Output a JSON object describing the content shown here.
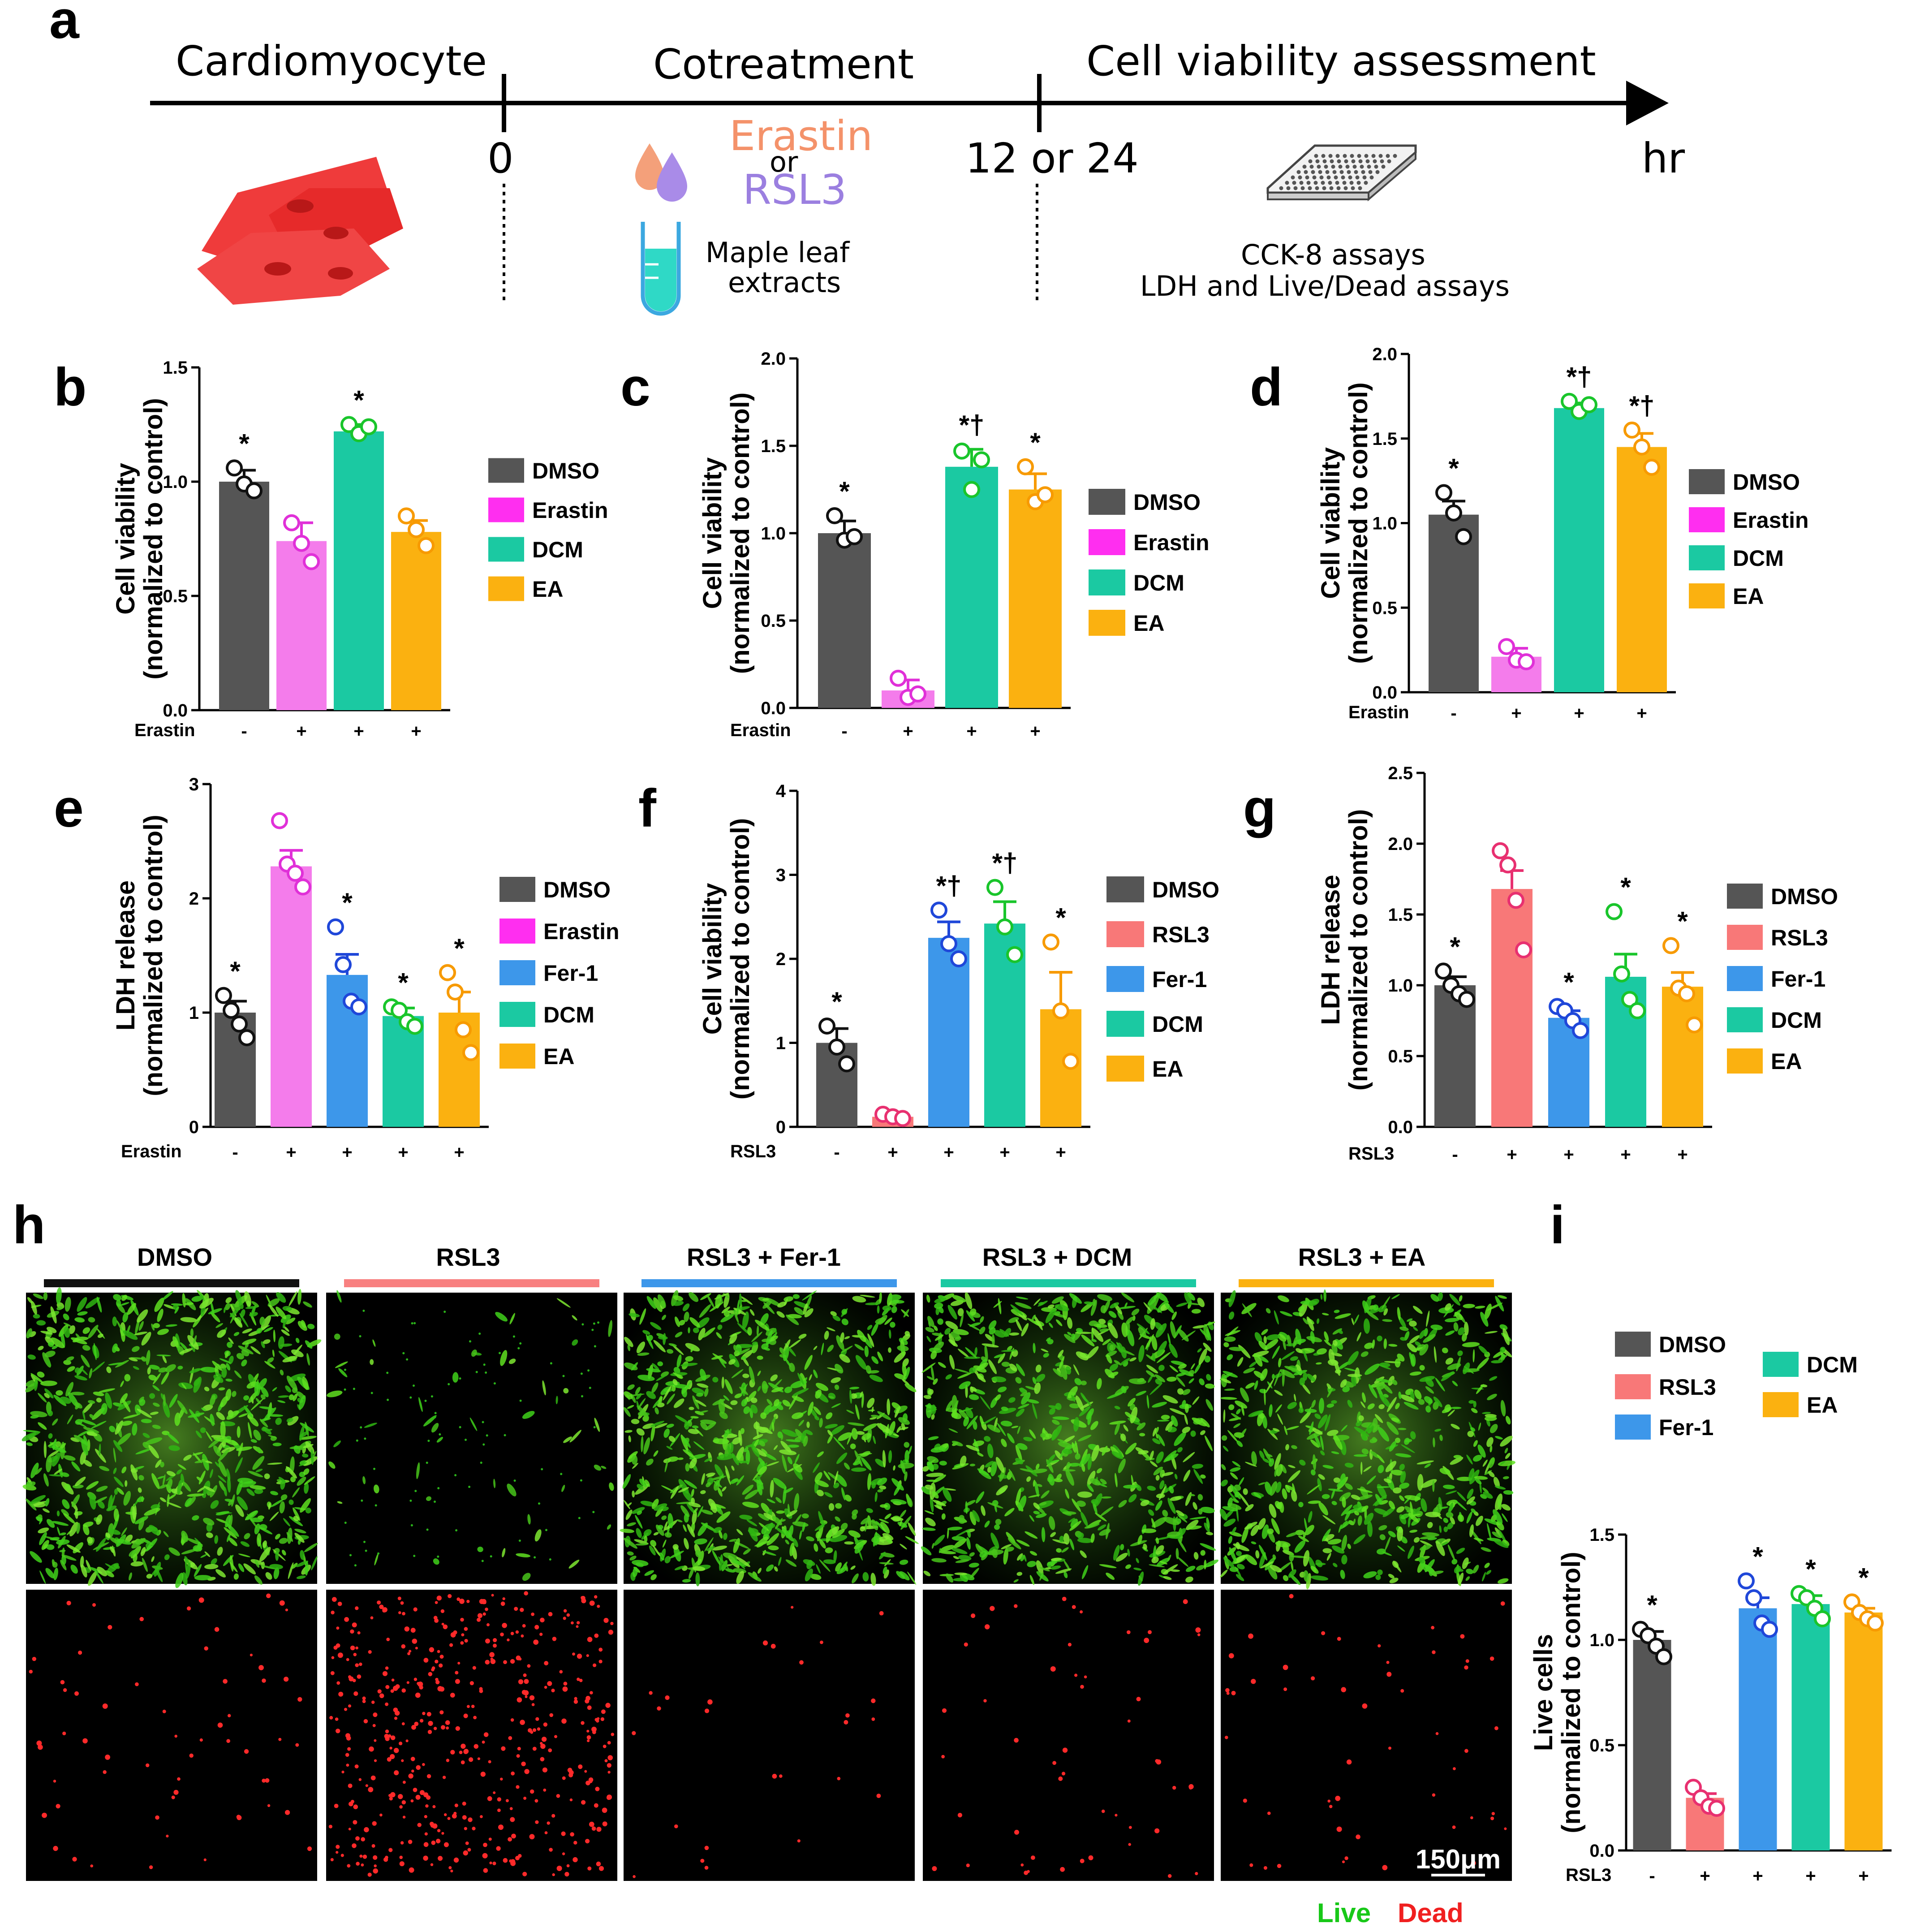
{
  "panel_labels": [
    "a",
    "b",
    "c",
    "d",
    "e",
    "f",
    "g",
    "h",
    "i"
  ],
  "timeline": {
    "stage_labels": [
      "Cardiomyocyte",
      "Cotreatment",
      "Cell viability assessment"
    ],
    "time_labels": [
      "0",
      "12 or 24",
      "hr"
    ],
    "treatment_erastin": "Erastin",
    "treatment_or": "or",
    "treatment_rsl3": "RSL3",
    "extract_label_1": "Maple leaf",
    "extract_label_2": "extracts",
    "assay_label_1": "CCK-8 assays",
    "assay_label_2": "LDH and Live/Dead assays",
    "colors": {
      "erastin": "#F4926A",
      "rsl3": "#9B7FE0",
      "cell": "#EF3B3B",
      "tube": "#2FD9C6"
    }
  },
  "colors": {
    "DMSO": "#555555",
    "Erastin_b": "#F47CEB",
    "Erastin_legend": "#FF2EF0",
    "RSL3": "#F87878",
    "Fer-1": "#3D97EA",
    "DCM": "#1BC9A2",
    "EA": "#FBB110",
    "dot_DMSO": "#111111",
    "dot_Erastin": "#E030D8",
    "dot_RSL3": "#E83070",
    "dot_Fer-1": "#1F47D9",
    "dot_DCM": "#19C52B",
    "dot_EA": "#F79A00"
  },
  "chart_data": [
    {
      "panel": "b",
      "type": "bar",
      "ylabel": "Cell viability (normalized to control)",
      "ylim": [
        0,
        1.5
      ],
      "yticks": [
        0.0,
        0.5,
        1.0,
        1.5
      ],
      "tick_decimals": 1,
      "treatment_label": "Erastin",
      "treatment_signs": [
        "-",
        "+",
        "+",
        "+"
      ],
      "groups": [
        "DMSO",
        "Erastin",
        "DCM",
        "EA"
      ],
      "values": [
        1.0,
        0.74,
        1.22,
        0.78
      ],
      "sem": [
        0.05,
        0.08,
        0.03,
        0.05
      ],
      "points": [
        [
          1.06,
          0.99,
          0.96
        ],
        [
          0.82,
          0.73,
          0.65
        ],
        [
          1.25,
          1.21,
          1.24
        ],
        [
          0.85,
          0.79,
          0.72
        ]
      ],
      "sig": [
        "*",
        "",
        "*",
        ""
      ],
      "legend": [
        "DMSO",
        "Erastin",
        "DCM",
        "EA"
      ]
    },
    {
      "panel": "c",
      "type": "bar",
      "ylabel": "Cell viability (normalized to control)",
      "ylim": [
        0,
        2.0
      ],
      "yticks": [
        0.0,
        0.5,
        1.0,
        1.5,
        2.0
      ],
      "tick_decimals": 1,
      "treatment_label": "Erastin",
      "treatment_signs": [
        "-",
        "+",
        "+",
        "+"
      ],
      "groups": [
        "DMSO",
        "Erastin",
        "DCM",
        "EA"
      ],
      "values": [
        1.0,
        0.1,
        1.38,
        1.25
      ],
      "sem": [
        0.07,
        0.06,
        0.1,
        0.09
      ],
      "points": [
        [
          1.1,
          0.96,
          0.98
        ],
        [
          0.17,
          0.06,
          0.08
        ],
        [
          1.47,
          1.25,
          1.42
        ],
        [
          1.38,
          1.18,
          1.22
        ]
      ],
      "sig": [
        "*",
        "",
        "*†",
        "*"
      ],
      "legend": [
        "DMSO",
        "Erastin",
        "DCM",
        "EA"
      ]
    },
    {
      "panel": "d",
      "type": "bar",
      "ylabel": "Cell viability (normalized to control)",
      "ylim": [
        0,
        2.0
      ],
      "yticks": [
        0.0,
        0.5,
        1.0,
        1.5,
        2.0
      ],
      "tick_decimals": 1,
      "treatment_label": "Erastin",
      "treatment_signs": [
        "-",
        "+",
        "+",
        "+"
      ],
      "groups": [
        "DMSO",
        "Erastin",
        "DCM",
        "EA"
      ],
      "values": [
        1.05,
        0.21,
        1.68,
        1.45
      ],
      "sem": [
        0.08,
        0.05,
        0.03,
        0.08
      ],
      "points": [
        [
          1.18,
          1.06,
          0.92
        ],
        [
          0.27,
          0.19,
          0.18
        ],
        [
          1.72,
          1.66,
          1.7
        ],
        [
          1.55,
          1.45,
          1.33
        ]
      ],
      "sig": [
        "*",
        "",
        "*†",
        "*†"
      ],
      "legend": [
        "DMSO",
        "Erastin",
        "DCM",
        "EA"
      ]
    },
    {
      "panel": "e",
      "type": "bar",
      "ylabel": "LDH release (normalized to control)",
      "ylim": [
        0,
        3
      ],
      "yticks": [
        0,
        1,
        2,
        3
      ],
      "tick_decimals": 0,
      "treatment_label": "Erastin",
      "treatment_signs": [
        "-",
        "+",
        "+",
        "+",
        "+"
      ],
      "groups": [
        "DMSO",
        "Erastin",
        "Fer-1",
        "DCM",
        "EA"
      ],
      "values": [
        1.0,
        2.28,
        1.33,
        0.97,
        1.0
      ],
      "sem": [
        0.1,
        0.14,
        0.18,
        0.07,
        0.18
      ],
      "points": [
        [
          1.15,
          1.02,
          0.9,
          0.78
        ],
        [
          2.68,
          2.3,
          2.22,
          2.1
        ],
        [
          1.75,
          1.42,
          1.1,
          1.05
        ],
        [
          1.05,
          1.02,
          0.92,
          0.88
        ],
        [
          1.35,
          1.18,
          0.85,
          0.65
        ]
      ],
      "sig": [
        "*",
        "",
        "*",
        "*",
        "*"
      ],
      "legend": [
        "DMSO",
        "Erastin",
        "Fer-1",
        "DCM",
        "EA"
      ]
    },
    {
      "panel": "f",
      "type": "bar",
      "ylabel": "Cell viability (normalized to control)",
      "ylim": [
        0,
        4
      ],
      "yticks": [
        0,
        1,
        2,
        3,
        4
      ],
      "tick_decimals": 0,
      "treatment_label": "RSL3",
      "treatment_signs": [
        "-",
        "+",
        "+",
        "+",
        "+"
      ],
      "groups": [
        "DMSO",
        "RSL3",
        "Fer-1",
        "DCM",
        "EA"
      ],
      "values": [
        1.0,
        0.12,
        2.25,
        2.42,
        1.4
      ],
      "sem": [
        0.17,
        0.03,
        0.19,
        0.26,
        0.44
      ],
      "points": [
        [
          1.2,
          0.95,
          0.75
        ],
        [
          0.15,
          0.12,
          0.1
        ],
        [
          2.58,
          2.18,
          2.0
        ],
        [
          2.85,
          2.38,
          2.05
        ],
        [
          2.2,
          1.38,
          0.78
        ]
      ],
      "sig": [
        "*",
        "",
        "*†",
        "*†",
        "*"
      ],
      "legend": [
        "DMSO",
        "RSL3",
        "Fer-1",
        "DCM",
        "EA"
      ]
    },
    {
      "panel": "g",
      "type": "bar",
      "ylabel": "LDH release (normalized to control)",
      "ylim": [
        0,
        2.5
      ],
      "yticks": [
        0.0,
        0.5,
        1.0,
        1.5,
        2.0,
        2.5
      ],
      "tick_decimals": 1,
      "treatment_label": "RSL3",
      "treatment_signs": [
        "-",
        "+",
        "+",
        "+",
        "+"
      ],
      "groups": [
        "DMSO",
        "RSL3",
        "Fer-1",
        "DCM",
        "EA"
      ],
      "values": [
        1.0,
        1.68,
        0.77,
        1.06,
        0.99
      ],
      "sem": [
        0.06,
        0.13,
        0.05,
        0.16,
        0.1
      ],
      "points": [
        [
          1.1,
          1.0,
          0.94,
          0.9
        ],
        [
          1.95,
          1.85,
          1.6,
          1.25
        ],
        [
          0.85,
          0.82,
          0.75,
          0.68
        ],
        [
          1.52,
          1.08,
          0.9,
          0.82
        ],
        [
          1.28,
          0.98,
          0.94,
          0.72
        ]
      ],
      "sig": [
        "*",
        "",
        "*",
        "*",
        "*"
      ],
      "legend": [
        "DMSO",
        "RSL3",
        "Fer-1",
        "DCM",
        "EA"
      ]
    },
    {
      "panel": "i",
      "type": "bar",
      "ylabel": "Live cells (normalized to control)",
      "ylim": [
        0,
        1.5
      ],
      "yticks": [
        0.0,
        0.5,
        1.0,
        1.5
      ],
      "tick_decimals": 1,
      "treatment_label": "RSL3",
      "treatment_signs": [
        "-",
        "+",
        "+",
        "+",
        "+"
      ],
      "groups": [
        "DMSO",
        "RSL3",
        "Fer-1",
        "DCM",
        "EA"
      ],
      "values": [
        1.0,
        0.25,
        1.15,
        1.17,
        1.13
      ],
      "sem": [
        0.04,
        0.02,
        0.05,
        0.04,
        0.02
      ],
      "points": [
        [
          1.05,
          1.02,
          0.97,
          0.92
        ],
        [
          0.3,
          0.25,
          0.21,
          0.2
        ],
        [
          1.28,
          1.2,
          1.08,
          1.05
        ],
        [
          1.22,
          1.2,
          1.15,
          1.1
        ],
        [
          1.18,
          1.13,
          1.1,
          1.08
        ]
      ],
      "sig": [
        "*",
        "",
        "*",
        "*",
        "*"
      ],
      "legend": [
        "DMSO",
        "RSL3",
        "Fer-1",
        "DCM",
        "EA"
      ]
    }
  ],
  "microscopy": {
    "conditions": [
      "DMSO",
      "RSL3",
      "RSL3 + Fer-1",
      "RSL3 + DCM",
      "RSL3 + EA"
    ],
    "condition_colors": [
      "#111111",
      "#F88080",
      "#3D97EA",
      "#1BC9A2",
      "#FBB110"
    ],
    "row_labels": [
      "Live",
      "Dead"
    ],
    "row_label_colors": [
      "#18C818",
      "#F02020"
    ],
    "live_levels": [
      0.9,
      0.06,
      0.92,
      0.85,
      0.82
    ],
    "dead_levels": [
      0.12,
      0.9,
      0.05,
      0.1,
      0.1
    ],
    "scale_bar": "150μm"
  }
}
